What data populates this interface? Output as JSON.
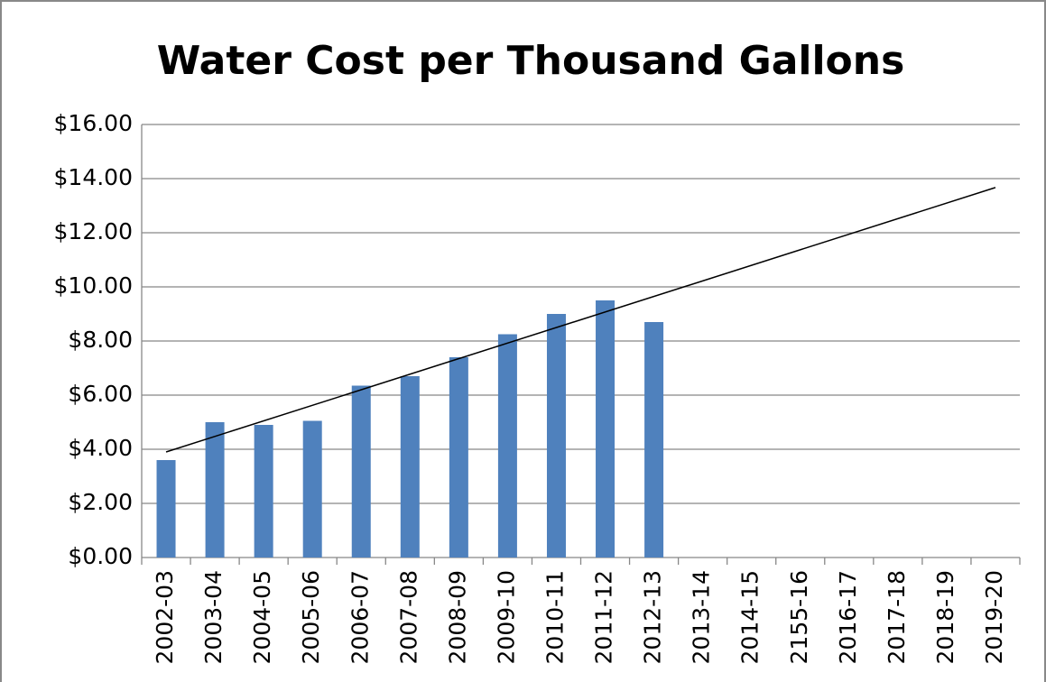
{
  "chart_data": {
    "type": "bar",
    "title": "Water Cost per Thousand Gallons",
    "categories": [
      "2002-03",
      "2003-04",
      "2004-05",
      "2005-06",
      "2006-07",
      "2007-08",
      "2008-09",
      "2009-10",
      "2010-11",
      "2011-12",
      "2012-13",
      "2013-14",
      "2014-15",
      "2155-16",
      "2016-17",
      "2017-18",
      "2018-19",
      "2019-20"
    ],
    "values": [
      3.6,
      5.0,
      4.9,
      5.05,
      6.35,
      6.7,
      7.4,
      8.25,
      9.0,
      9.5,
      8.7,
      null,
      null,
      null,
      null,
      null,
      null,
      null
    ],
    "color": "#4f81bd",
    "trendline": {
      "values": [
        3.9,
        13.67
      ],
      "color": "#000000"
    },
    "ylim": [
      0,
      16
    ],
    "yticks": [
      {
        "value": 0,
        "label": "$0.00"
      },
      {
        "value": 2,
        "label": "$2.00"
      },
      {
        "value": 4,
        "label": "$4.00"
      },
      {
        "value": 6,
        "label": "$6.00"
      },
      {
        "value": 8,
        "label": "$8.00"
      },
      {
        "value": 10,
        "label": "$10.00"
      },
      {
        "value": 12,
        "label": "$12.00"
      },
      {
        "value": 14,
        "label": "$14.00"
      },
      {
        "value": 16,
        "label": "$16.00"
      }
    ],
    "grid": true
  }
}
